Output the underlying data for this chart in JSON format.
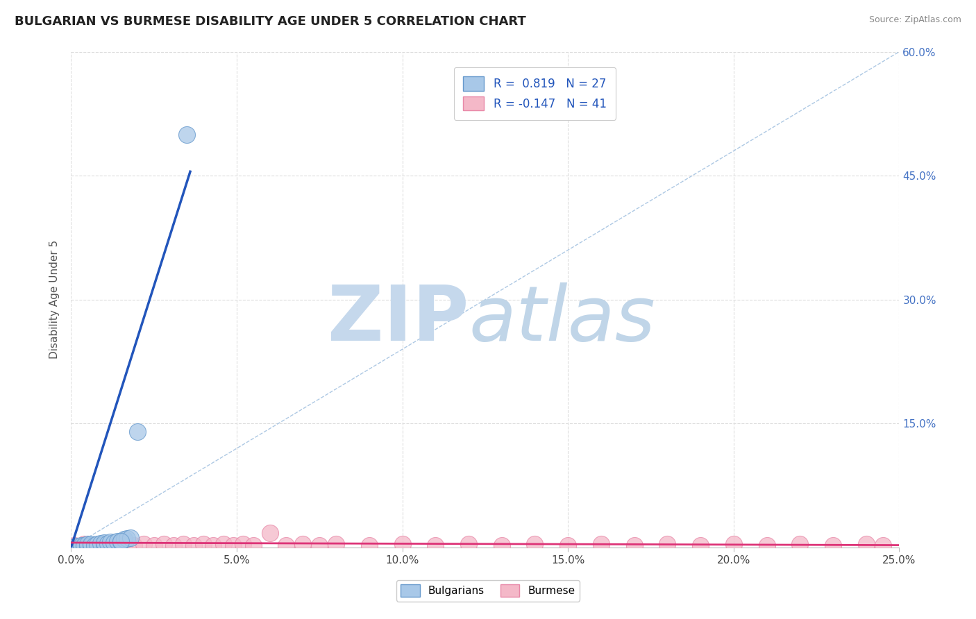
{
  "title": "BULGARIAN VS BURMESE DISABILITY AGE UNDER 5 CORRELATION CHART",
  "source": "Source: ZipAtlas.com",
  "ylabel": "Disability Age Under 5",
  "xlim": [
    0.0,
    0.25
  ],
  "ylim": [
    0.0,
    0.6
  ],
  "xticks": [
    0.0,
    0.05,
    0.1,
    0.15,
    0.2,
    0.25
  ],
  "yticks": [
    0.0,
    0.15,
    0.3,
    0.45,
    0.6
  ],
  "ytick_labels_right": [
    "",
    "15.0%",
    "30.0%",
    "45.0%",
    "60.0%"
  ],
  "xtick_labels": [
    "0.0%",
    "5.0%",
    "10.0%",
    "15.0%",
    "20.0%",
    "25.0%"
  ],
  "bulgarian_color": "#a8c8e8",
  "burmese_color": "#f4b8c8",
  "bulgarian_edge": "#6699cc",
  "burmese_edge": "#e888a8",
  "trend_bulgarian_color": "#2255bb",
  "trend_burmese_color": "#dd3377",
  "diag_color": "#99bbdd",
  "R_bulgarian": 0.819,
  "N_bulgarian": 27,
  "R_burmese": -0.147,
  "N_burmese": 41,
  "watermark_zip_color": "#c5d8ec",
  "watermark_atlas_color": "#c0d5e8",
  "bg_x": [
    0.001,
    0.002,
    0.002,
    0.003,
    0.003,
    0.004,
    0.004,
    0.005,
    0.005,
    0.006,
    0.006,
    0.007,
    0.008,
    0.009,
    0.01,
    0.01,
    0.011,
    0.012,
    0.013,
    0.014,
    0.015,
    0.016,
    0.017,
    0.018,
    0.02,
    0.015,
    0.035
  ],
  "bg_y": [
    0.001,
    0.001,
    0.002,
    0.001,
    0.003,
    0.002,
    0.003,
    0.002,
    0.004,
    0.003,
    0.004,
    0.003,
    0.004,
    0.005,
    0.004,
    0.006,
    0.005,
    0.007,
    0.006,
    0.008,
    0.007,
    0.01,
    0.011,
    0.012,
    0.14,
    0.008,
    0.5
  ],
  "bm_x": [
    0.001,
    0.004,
    0.007,
    0.01,
    0.013,
    0.016,
    0.019,
    0.022,
    0.025,
    0.028,
    0.031,
    0.034,
    0.037,
    0.04,
    0.043,
    0.046,
    0.049,
    0.052,
    0.055,
    0.06,
    0.065,
    0.07,
    0.075,
    0.08,
    0.09,
    0.1,
    0.11,
    0.12,
    0.13,
    0.14,
    0.15,
    0.16,
    0.17,
    0.18,
    0.19,
    0.2,
    0.21,
    0.22,
    0.23,
    0.24,
    0.245
  ],
  "bm_y": [
    0.003,
    0.004,
    0.003,
    0.004,
    0.003,
    0.004,
    0.003,
    0.004,
    0.003,
    0.004,
    0.003,
    0.004,
    0.003,
    0.004,
    0.003,
    0.004,
    0.003,
    0.004,
    0.003,
    0.018,
    0.003,
    0.004,
    0.003,
    0.004,
    0.003,
    0.004,
    0.003,
    0.004,
    0.003,
    0.004,
    0.003,
    0.004,
    0.003,
    0.004,
    0.003,
    0.004,
    0.003,
    0.004,
    0.003,
    0.004,
    0.003
  ],
  "bg_trend_x": [
    0.0,
    0.036
  ],
  "bg_trend_y": [
    0.0,
    0.455
  ],
  "bm_trend_x": [
    0.0,
    0.25
  ],
  "bm_trend_y": [
    0.006,
    0.003
  ]
}
